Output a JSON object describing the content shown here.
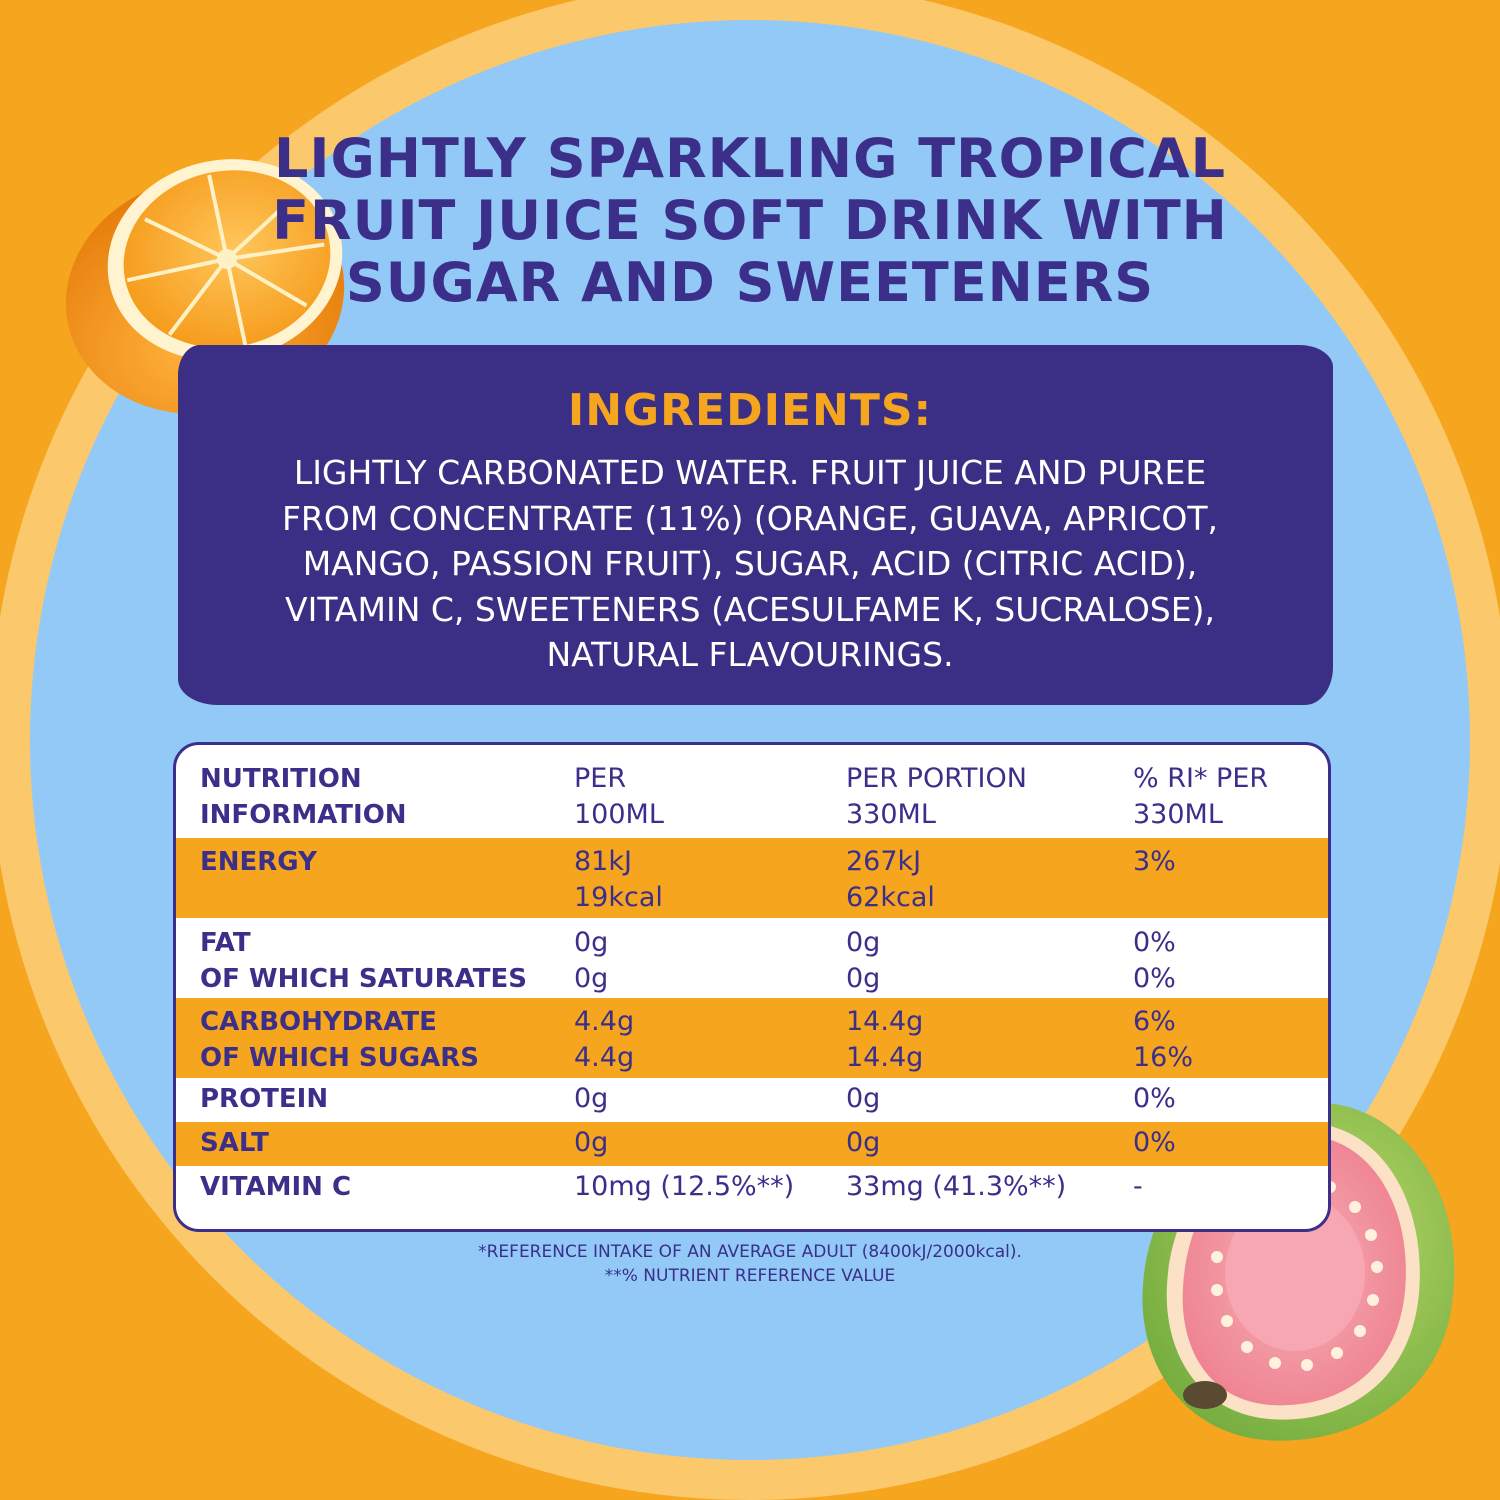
{
  "title": {
    "line1": "LIGHTLY SPARKLING TROPICAL",
    "line2": "FRUIT JUICE SOFT DRINK WITH",
    "line3": "SUGAR AND SWEETENERS"
  },
  "ingredients": {
    "heading": "INGREDIENTS:",
    "line1": "LIGHTLY CARBONATED WATER. FRUIT JUICE AND PUREE",
    "line2": "FROM CONCENTRATE (11%) (ORANGE, GUAVA, APRICOT,",
    "line3": "MANGO, PASSION FRUIT), SUGAR, ACID (CITRIC ACID),",
    "line4": "VITAMIN C, SWEETENERS (ACESULFAME K, SUCRALOSE),",
    "line5": "NATURAL FLAVOURINGS."
  },
  "nutrition": {
    "header": {
      "name_1": "NUTRITION",
      "name_2": "INFORMATION",
      "c1_1": "PER",
      "c1_2": "100ML",
      "c2_1": "PER PORTION",
      "c2_2": "330ML",
      "c3_1": "% RI* PER",
      "c3_2": "330ML"
    },
    "rows": [
      {
        "name_1": "ENERGY",
        "name_2": "",
        "c1_1": "81kJ",
        "c1_2": "19kcal",
        "c2_1": "267kJ",
        "c2_2": "62kcal",
        "c3_1": "3%",
        "c3_2": ""
      },
      {
        "name_1": "FAT",
        "name_2": "OF WHICH SATURATES",
        "c1_1": "0g",
        "c1_2": "0g",
        "c2_1": "0g",
        "c2_2": "0g",
        "c3_1": "0%",
        "c3_2": "0%"
      },
      {
        "name_1": "CARBOHYDRATE",
        "name_2": "OF WHICH SUGARS",
        "c1_1": "4.4g",
        "c1_2": "4.4g",
        "c2_1": "14.4g",
        "c2_2": "14.4g",
        "c3_1": "6%",
        "c3_2": "16%"
      },
      {
        "name_1": "PROTEIN",
        "c1_1": "0g",
        "c2_1": "0g",
        "c3_1": "0%"
      },
      {
        "name_1": "SALT",
        "c1_1": "0g",
        "c2_1": "0g",
        "c3_1": "0%"
      },
      {
        "name_1": "VITAMIN C",
        "c1_1": "10mg (12.5%**)",
        "c2_1": "33mg (41.3%**)",
        "c3_1": "-"
      }
    ]
  },
  "footnotes": {
    "line1": "*REFERENCE INTAKE OF AN AVERAGE ADULT (8400kJ/2000kcal).",
    "line2": "**% NUTRIENT REFERENCE VALUE"
  },
  "colors": {
    "background": "#f6a51e",
    "circle": "#92c9f7",
    "ring": "#fcc86c",
    "navy": "#3b2f8a",
    "panel": "#3a2f85",
    "accent_orange": "#f6a51e"
  },
  "illustrations": [
    "orange-half-icon",
    "guava-half-icon"
  ]
}
